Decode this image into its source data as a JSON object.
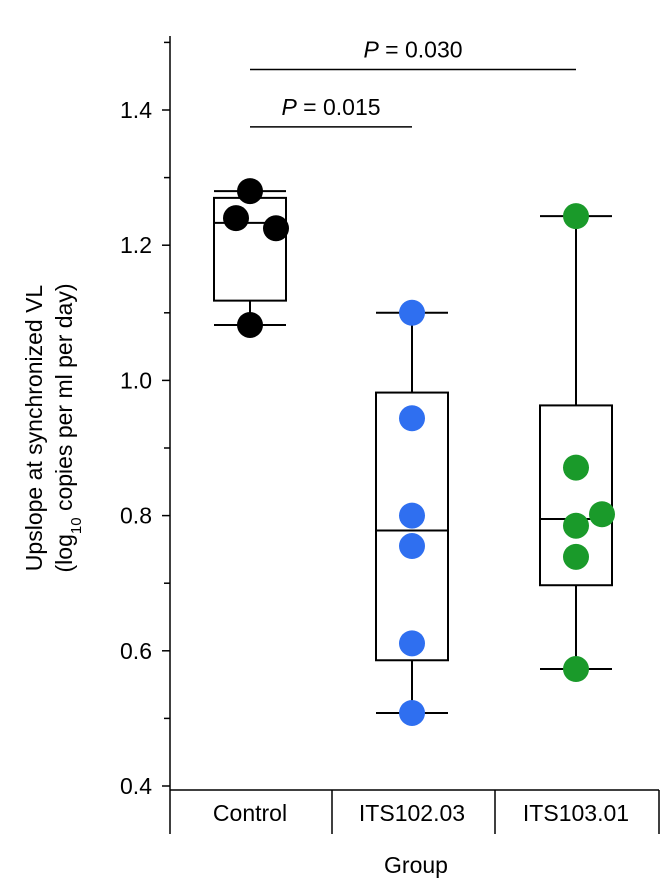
{
  "chart_data": {
    "type": "box",
    "xlabel": "Group",
    "ylabel": {
      "line1": "Upslope at synchronized VL",
      "line2_pre": "(log",
      "line2_sub": "10",
      "line2_post": " copies per ml per day)"
    },
    "ylim": [
      0.4,
      1.5
    ],
    "yticks": [
      "0.4",
      "0.6",
      "0.8",
      "1.0",
      "1.2",
      "1.4"
    ],
    "ytick_values": [
      0.4,
      0.6,
      0.8,
      1.0,
      1.2,
      1.4
    ],
    "categories": [
      "Control",
      "ITS102.03",
      "ITS103.01"
    ],
    "series": [
      {
        "category": "Control",
        "color": "#000000",
        "points": [
          1.28,
          1.24,
          1.225,
          1.082
        ],
        "box": {
          "whisker_low": 1.082,
          "q1": 1.118,
          "median": 1.233,
          "q3": 1.27,
          "whisker_high": 1.28
        }
      },
      {
        "category": "ITS102.03",
        "color": "#2f6ff0",
        "points": [
          1.1,
          0.944,
          0.8,
          0.755,
          0.611,
          0.508
        ],
        "box": {
          "whisker_low": 0.508,
          "q1": 0.586,
          "median": 0.778,
          "q3": 0.982,
          "whisker_high": 1.1
        }
      },
      {
        "category": "ITS103.01",
        "color": "#1a9a2a",
        "points": [
          1.243,
          0.871,
          0.802,
          0.785,
          0.739,
          0.573
        ],
        "box": {
          "whisker_low": 0.573,
          "q1": 0.697,
          "median": 0.795,
          "q3": 0.963,
          "whisker_high": 1.243
        }
      }
    ],
    "annotations": [
      {
        "italic": "P",
        "rest": " = 0.030",
        "from": "Control",
        "to": "ITS103.01",
        "level": 1.46
      },
      {
        "italic": "P",
        "rest": " = 0.015",
        "from": "Control",
        "to": "ITS102.03",
        "level": 1.375
      }
    ]
  }
}
